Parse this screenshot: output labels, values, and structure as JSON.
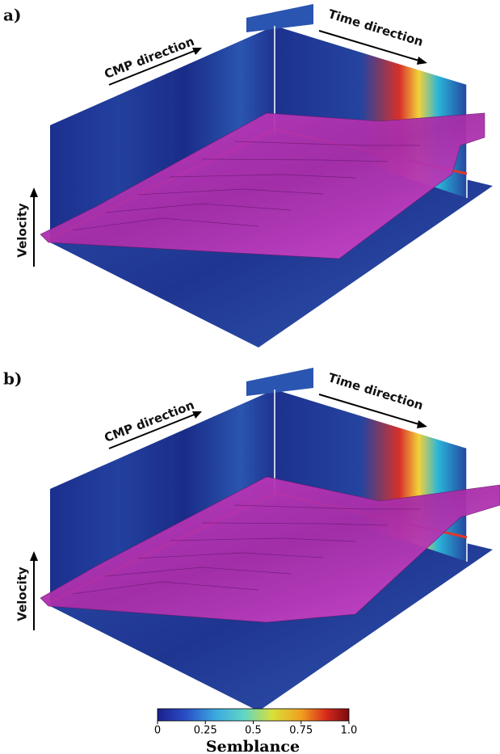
{
  "panels": [
    {
      "label": "a)",
      "cmp_label": "CMP direction",
      "time_label": "Time direction",
      "velocity_label": "Velocity"
    },
    {
      "label": "b)",
      "cmp_label": "CMP direction",
      "time_label": "Time direction",
      "velocity_label": "Velocity"
    }
  ],
  "colorbar": {
    "label": "Semblance",
    "lim": [
      0,
      1
    ],
    "ticks": [
      0,
      0.25,
      0.5,
      0.75,
      {
        "value": 1,
        "label": "1.0"
      }
    ]
  }
}
